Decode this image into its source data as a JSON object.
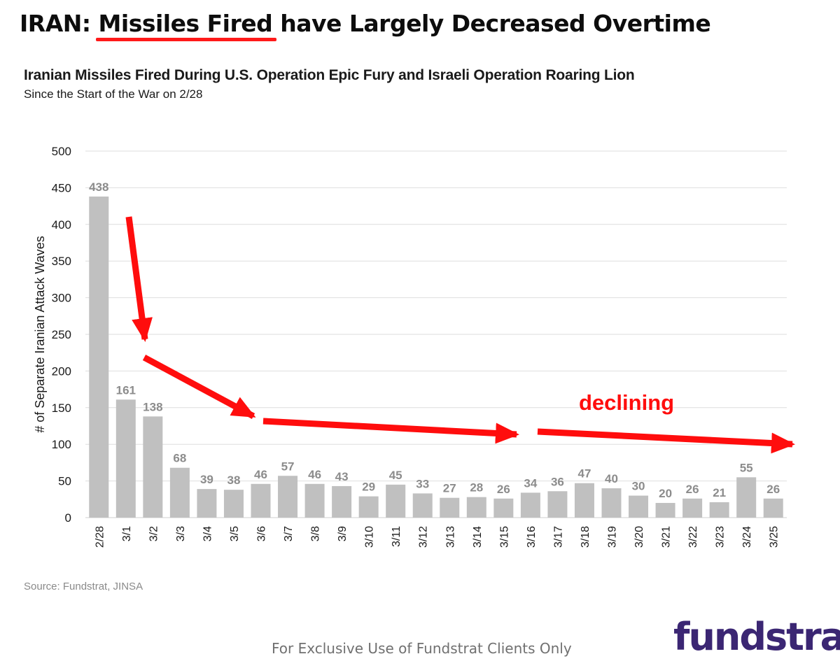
{
  "header": {
    "title_prefix": "IRAN: ",
    "title_highlight": "Missiles Fired",
    "title_suffix": " have Largely Decreased Overtime"
  },
  "colors": {
    "bar": "#c0c0c0",
    "label": "#8c8c8c",
    "annotation": "#ff0d0d",
    "grid": "#dedede",
    "brand": "#3b2673"
  },
  "chart_data": {
    "type": "bar",
    "title": "Iranian Missiles Fired During U.S. Operation Epic Fury and Israeli Operation Roaring Lion",
    "subtitle": "Since the Start of the War on 2/28",
    "xlabel": "",
    "ylabel": "# of Separate Iranian Attack Waves",
    "ylim": [
      0,
      500
    ],
    "yticks": [
      0,
      50,
      100,
      150,
      200,
      250,
      300,
      350,
      400,
      450,
      500
    ],
    "grid": true,
    "categories": [
      "2/28",
      "3/1",
      "3/2",
      "3/3",
      "3/4",
      "3/5",
      "3/6",
      "3/7",
      "3/8",
      "3/9",
      "3/10",
      "3/11",
      "3/12",
      "3/13",
      "3/14",
      "3/15",
      "3/16",
      "3/17",
      "3/18",
      "3/19",
      "3/20",
      "3/21",
      "3/22",
      "3/23",
      "3/24",
      "3/25"
    ],
    "values": [
      438,
      161,
      138,
      68,
      39,
      38,
      46,
      57,
      46,
      43,
      29,
      45,
      33,
      27,
      28,
      26,
      34,
      36,
      47,
      40,
      30,
      20,
      26,
      21,
      55,
      26
    ],
    "annotations": [
      {
        "text": "declining"
      }
    ]
  },
  "footer": {
    "source": "Source: Fundstrat, JINSA",
    "note": "For Exclusive Use of Fundstrat Clients Only",
    "logo": "fundstrat"
  }
}
